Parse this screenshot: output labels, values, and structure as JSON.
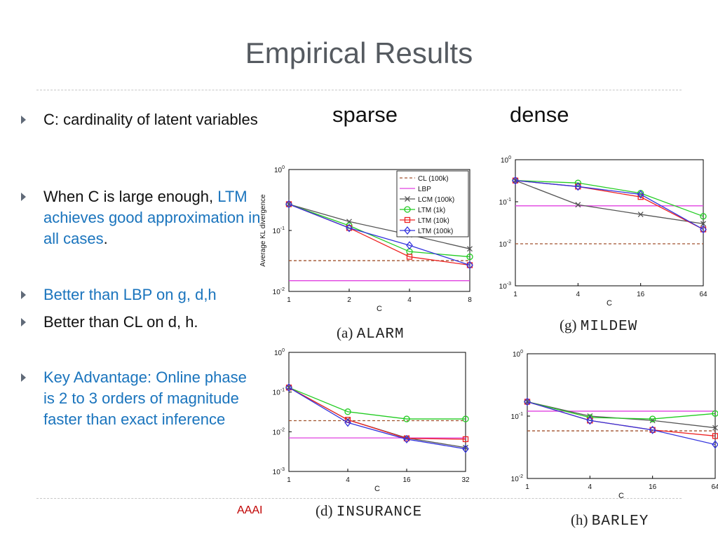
{
  "slide": {
    "title": "Empirical Results",
    "col_sparse": "sparse",
    "col_dense": "dense",
    "footer": "AAAI",
    "bullets": [
      {
        "text": "C: cardinality of latent variables",
        "color": "#111111"
      },
      {
        "text": "When C is large enough,",
        "text_blue": "LTM achieves good approximation in all cases",
        "text_end": "."
      },
      {
        "text": "Better than LBP on g, d,h",
        "color": "#1a74bd"
      },
      {
        "text": "Better than CL on d, h.",
        "color": "#111111"
      },
      {
        "text": "Key Advantage: Online phase is 2 to 3 orders of magnitude faster than exact inference",
        "color": "#1a74bd"
      }
    ]
  },
  "chart_data": [
    {
      "id": "alarm",
      "type": "line",
      "caption_letter": "(a)",
      "caption_name": "ALARM",
      "title": "",
      "xlabel": "C",
      "ylabel": "Average KL divergence",
      "yscale": "log",
      "ylim": [
        0.01,
        1
      ],
      "x_ticks": [
        "1",
        "2",
        "4",
        "8"
      ],
      "y_ticks": [
        {
          "label": "10",
          "exp": "0",
          "value": 1
        },
        {
          "label": "10",
          "exp": "-1",
          "value": 0.1
        },
        {
          "label": "10",
          "exp": "-2",
          "value": 0.01
        }
      ],
      "legend": true,
      "legend_position": "top-right",
      "series": [
        {
          "name": "CL (100k)",
          "color": "#a0522d",
          "dash": true,
          "marker": "none",
          "values": [
            0.032,
            0.032,
            0.032,
            0.032
          ]
        },
        {
          "name": "LBP",
          "color": "#e040e0",
          "marker": "none",
          "values": [
            0.015,
            0.015,
            0.015,
            0.015
          ]
        },
        {
          "name": "LCM (100k)",
          "color": "#555555",
          "marker": "x",
          "values": [
            0.27,
            0.14,
            0.085,
            0.05
          ]
        },
        {
          "name": "LTM (1k)",
          "color": "#22cc22",
          "marker": "circle",
          "values": [
            0.27,
            0.12,
            0.045,
            0.037
          ]
        },
        {
          "name": "LTM (10k)",
          "color": "#ee2222",
          "marker": "square",
          "values": [
            0.27,
            0.11,
            0.037,
            0.027
          ]
        },
        {
          "name": "LTM (100k)",
          "color": "#3333dd",
          "marker": "diamond",
          "values": [
            0.27,
            0.11,
            0.057,
            0.027
          ]
        }
      ]
    },
    {
      "id": "mildew",
      "type": "line",
      "caption_letter": "(g)",
      "caption_name": "MILDEW",
      "title": "",
      "xlabel": "C",
      "ylabel": "",
      "yscale": "log",
      "ylim": [
        0.001,
        1
      ],
      "x_ticks": [
        "1",
        "4",
        "16",
        "64"
      ],
      "y_ticks": [
        {
          "label": "10",
          "exp": "0",
          "value": 1
        },
        {
          "label": "10",
          "exp": "-1",
          "value": 0.1
        },
        {
          "label": "10",
          "exp": "-2",
          "value": 0.01
        },
        {
          "label": "10",
          "exp": "-3",
          "value": 0.001
        }
      ],
      "legend": false,
      "series": [
        {
          "name": "CL (100k)",
          "color": "#a0522d",
          "dash": true,
          "marker": "none",
          "values": [
            0.01,
            0.01,
            0.01,
            0.01
          ]
        },
        {
          "name": "LBP",
          "color": "#e040e0",
          "marker": "none",
          "values": [
            0.08,
            0.08,
            0.08,
            0.08
          ]
        },
        {
          "name": "LCM (100k)",
          "color": "#555555",
          "marker": "x",
          "values": [
            0.32,
            0.085,
            0.05,
            0.03
          ]
        },
        {
          "name": "LTM (1k)",
          "color": "#22cc22",
          "marker": "circle",
          "values": [
            0.32,
            0.28,
            0.16,
            0.045
          ]
        },
        {
          "name": "LTM (10k)",
          "color": "#ee2222",
          "marker": "square",
          "values": [
            0.32,
            0.23,
            0.13,
            0.022
          ]
        },
        {
          "name": "LTM (100k)",
          "color": "#3333dd",
          "marker": "diamond",
          "values": [
            0.32,
            0.23,
            0.15,
            0.022
          ]
        }
      ]
    },
    {
      "id": "insurance",
      "type": "line",
      "caption_letter": "(d)",
      "caption_name": "INSURANCE",
      "title": "",
      "xlabel": "C",
      "ylabel": "",
      "yscale": "log",
      "ylim": [
        0.001,
        1
      ],
      "x_ticks": [
        "1",
        "4",
        "16",
        "32"
      ],
      "y_ticks": [
        {
          "label": "10",
          "exp": "0",
          "value": 1
        },
        {
          "label": "10",
          "exp": "-1",
          "value": 0.1
        },
        {
          "label": "10",
          "exp": "-2",
          "value": 0.01
        },
        {
          "label": "10",
          "exp": "-3",
          "value": 0.001
        }
      ],
      "legend": false,
      "series": [
        {
          "name": "CL (100k)",
          "color": "#a0522d",
          "dash": true,
          "marker": "none",
          "values": [
            0.019,
            0.019,
            0.019,
            0.019
          ]
        },
        {
          "name": "LBP",
          "color": "#e040e0",
          "marker": "none",
          "values": [
            0.007,
            0.007,
            0.007,
            0.007
          ]
        },
        {
          "name": "LCM (100k)",
          "color": "#555555",
          "marker": "x",
          "values": [
            0.13,
            0.02,
            0.007,
            0.004
          ]
        },
        {
          "name": "LTM (1k)",
          "color": "#22cc22",
          "marker": "circle",
          "values": [
            0.13,
            0.032,
            0.021,
            0.021
          ]
        },
        {
          "name": "LTM (10k)",
          "color": "#ee2222",
          "marker": "square",
          "values": [
            0.13,
            0.02,
            0.0068,
            0.0065
          ]
        },
        {
          "name": "LTM (100k)",
          "color": "#3333dd",
          "marker": "diamond",
          "values": [
            0.13,
            0.017,
            0.0065,
            0.0037
          ]
        }
      ]
    },
    {
      "id": "barley",
      "type": "line",
      "caption_letter": "(h)",
      "caption_name": "BARLEY",
      "title": "",
      "xlabel": "C",
      "ylabel": "",
      "yscale": "log",
      "ylim": [
        0.01,
        1
      ],
      "x_ticks": [
        "1",
        "4",
        "16",
        "64"
      ],
      "y_ticks": [
        {
          "label": "10",
          "exp": "0",
          "value": 1
        },
        {
          "label": "10",
          "exp": "-1",
          "value": 0.1
        },
        {
          "label": "10",
          "exp": "-2",
          "value": 0.01
        }
      ],
      "legend": false,
      "series": [
        {
          "name": "CL (100k)",
          "color": "#a0522d",
          "dash": true,
          "marker": "none",
          "values": [
            0.058,
            0.058,
            0.058,
            0.058
          ]
        },
        {
          "name": "LBP",
          "color": "#e040e0",
          "marker": "none",
          "values": [
            0.12,
            0.12,
            0.12,
            0.12
          ]
        },
        {
          "name": "LCM (100k)",
          "color": "#555555",
          "marker": "x",
          "values": [
            0.17,
            0.1,
            0.085,
            0.065
          ]
        },
        {
          "name": "LTM (1k)",
          "color": "#22cc22",
          "marker": "circle",
          "values": [
            0.17,
            0.095,
            0.09,
            0.11
          ]
        },
        {
          "name": "LTM (10k)",
          "color": "#ee2222",
          "marker": "square",
          "values": [
            0.17,
            0.085,
            0.06,
            0.048
          ]
        },
        {
          "name": "LTM (100k)",
          "color": "#3333dd",
          "marker": "diamond",
          "values": [
            0.17,
            0.085,
            0.06,
            0.035
          ]
        }
      ]
    }
  ]
}
